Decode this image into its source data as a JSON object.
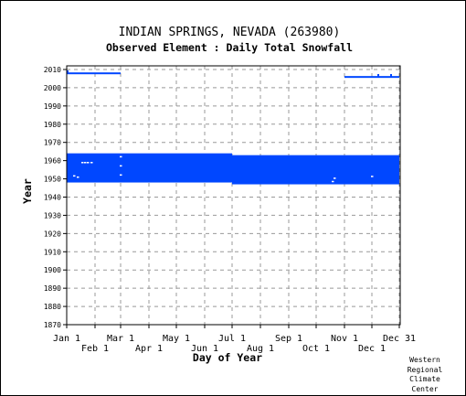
{
  "title": "INDIAN SPRINGS, NEVADA   (263980)",
  "subtitle": "Observed Element : Daily Total Snowfall",
  "credit": [
    "Western",
    "Regional",
    "Climate",
    "Center"
  ],
  "colors": {
    "data": "#0047ff",
    "axis": "#000000",
    "grid": "#999999"
  },
  "chart_data": {
    "type": "scatter",
    "title": "INDIAN SPRINGS, NEVADA   (263980)",
    "subtitle": "Observed Element : Daily Total Snowfall",
    "xlabel": "Day of Year",
    "ylabel": "Year",
    "xlim": [
      1,
      366
    ],
    "ylim": [
      1870,
      2012
    ],
    "grid": true,
    "x_ticks_upper": [
      {
        "label": "Jan 1",
        "day": 1
      },
      {
        "label": "Mar 1",
        "day": 60
      },
      {
        "label": "May 1",
        "day": 121
      },
      {
        "label": "Jul 1",
        "day": 182
      },
      {
        "label": "Sep 1",
        "day": 244
      },
      {
        "label": "Nov 1",
        "day": 305
      },
      {
        "label": "Dec 31",
        "day": 365
      }
    ],
    "x_ticks_lower": [
      {
        "label": "Feb 1",
        "day": 32
      },
      {
        "label": "Apr 1",
        "day": 91
      },
      {
        "label": "Jun 1",
        "day": 152
      },
      {
        "label": "Aug 1",
        "day": 213
      },
      {
        "label": "Oct 1",
        "day": 274
      },
      {
        "label": "Dec 1",
        "day": 335
      }
    ],
    "y_ticks": [
      2010,
      2000,
      1990,
      1980,
      1970,
      1960,
      1950,
      1940,
      1930,
      1920,
      1910,
      1900,
      1890,
      1880,
      1870
    ],
    "record_blocks": [
      {
        "name": "1948-1964 record, Jan-Jun",
        "day_start": 1,
        "day_end": 182,
        "year_start": 1948,
        "year_end": 1964
      },
      {
        "name": "1947-1963 record, Jul-Dec",
        "day_start": 182,
        "day_end": 365,
        "year_start": 1947,
        "year_end": 1963
      },
      {
        "name": "2008 record, Jan-Mar",
        "day_start": 1,
        "day_end": 60,
        "year_start": 2007.6,
        "year_end": 2008.4
      },
      {
        "name": "2006 record, Nov-Dec",
        "day_start": 305,
        "day_end": 365,
        "year_start": 2005.6,
        "year_end": 2006.4
      }
    ],
    "missing_points": [
      {
        "day": 18,
        "year": 1958.8
      },
      {
        "day": 21,
        "year": 1958.8
      },
      {
        "day": 24,
        "year": 1958.8
      },
      {
        "day": 28,
        "year": 1958.8
      },
      {
        "day": 9,
        "year": 1951.5
      },
      {
        "day": 13,
        "year": 1950.8
      },
      {
        "day": 60,
        "year": 1962
      },
      {
        "day": 60,
        "year": 1957
      },
      {
        "day": 60,
        "year": 1952
      },
      {
        "day": 294,
        "year": 1950.2
      },
      {
        "day": 292,
        "year": 1948.4
      },
      {
        "day": 335,
        "year": 1951.2
      }
    ],
    "marker_points": [
      {
        "day": 2,
        "year": 2009
      },
      {
        "day": 342,
        "year": 2007
      },
      {
        "day": 356,
        "year": 2007
      }
    ]
  }
}
